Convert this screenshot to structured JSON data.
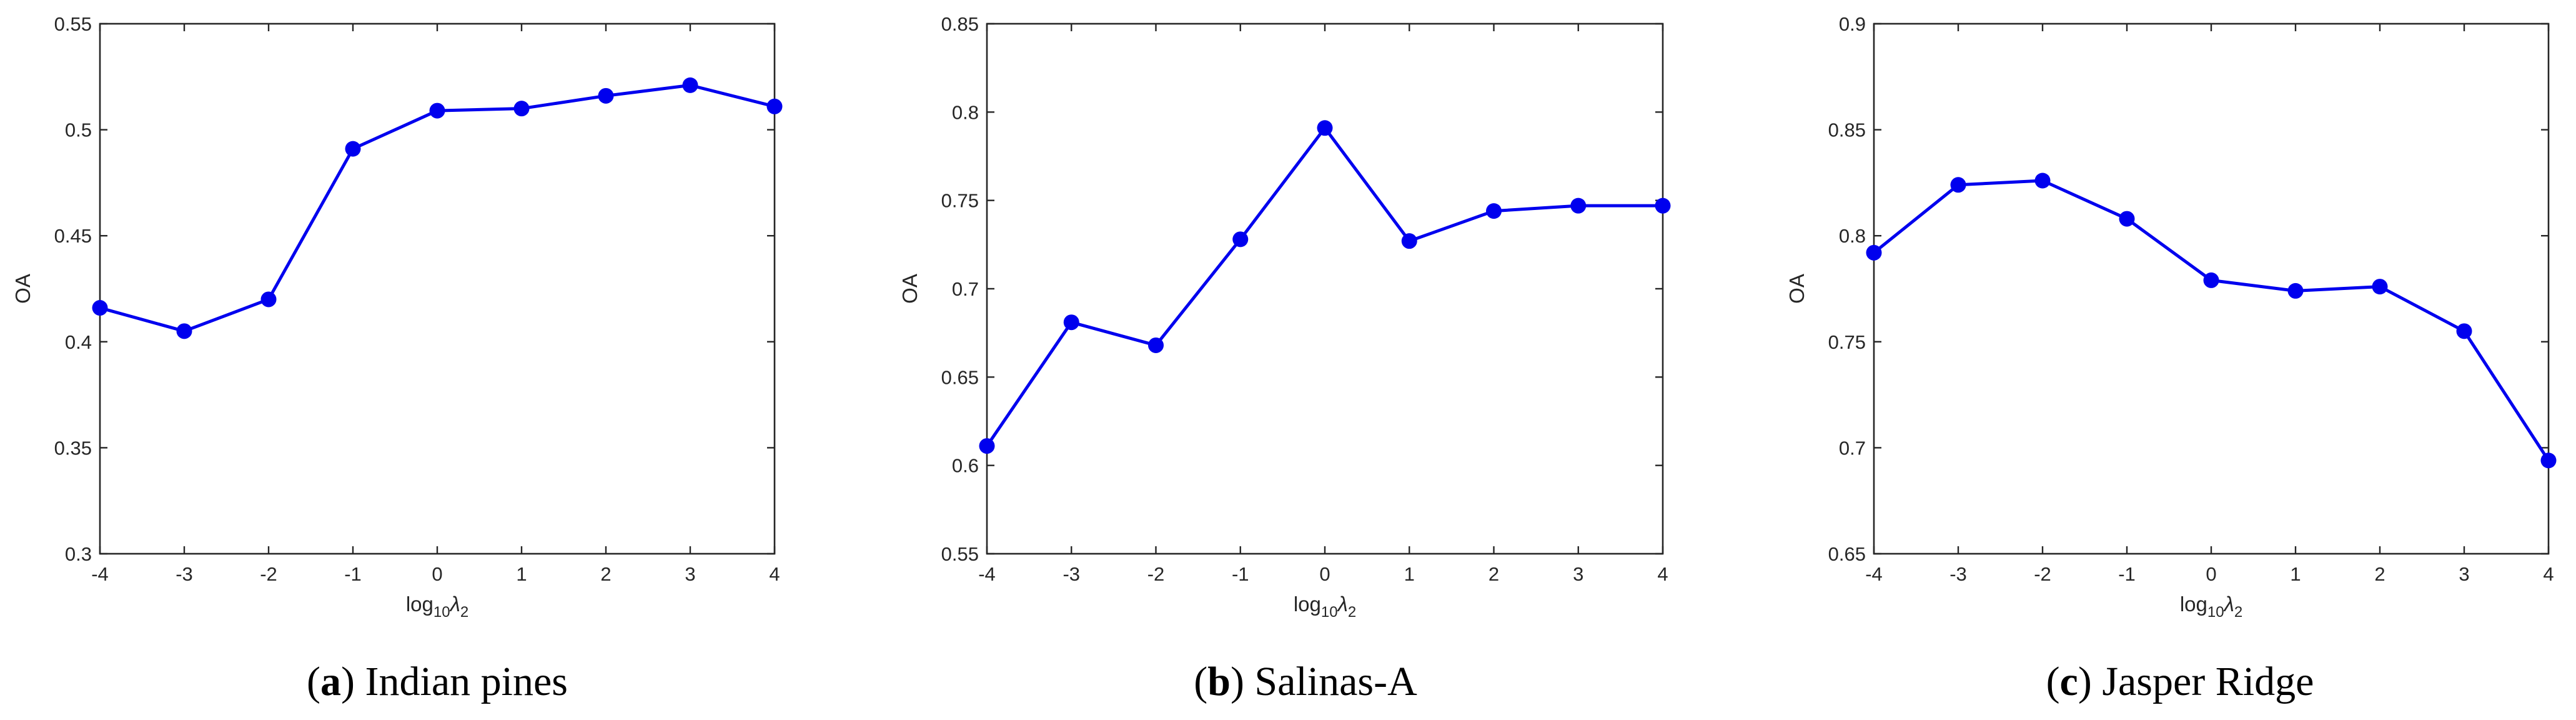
{
  "chart_data": [
    {
      "type": "line",
      "caption_letter": "a",
      "caption_text": "Indian pines",
      "xlabel_base": "log",
      "xlabel_sub": "10",
      "xlabel_symbol": "λ",
      "xlabel_symbol_sub": "2",
      "ylabel": "OA",
      "x": [
        -4,
        -3,
        -2,
        -1,
        0,
        1,
        2,
        3,
        4
      ],
      "xticks": [
        "-4",
        "-3",
        "-2",
        "-1",
        "0",
        "1",
        "2",
        "3",
        "4"
      ],
      "xlim": [
        -4,
        4
      ],
      "ylim": [
        0.3,
        0.55
      ],
      "yticks": [
        0.3,
        0.35,
        0.4,
        0.45,
        0.5,
        0.55
      ],
      "ytick_labels": [
        "0.3",
        "0.35",
        "0.4",
        "0.45",
        "0.5",
        "0.55"
      ],
      "series": [
        {
          "values": [
            0.416,
            0.405,
            0.42,
            0.491,
            0.509,
            0.51,
            0.516,
            0.521,
            0.511
          ],
          "color": "#0000ee"
        }
      ],
      "grid": false
    },
    {
      "type": "line",
      "caption_letter": "b",
      "caption_text": "Salinas-A",
      "xlabel_base": "log",
      "xlabel_sub": "10",
      "xlabel_symbol": "λ",
      "xlabel_symbol_sub": "2",
      "ylabel": "OA",
      "x": [
        -4,
        -3,
        -2,
        -1,
        0,
        1,
        2,
        3,
        4
      ],
      "xticks": [
        "-4",
        "-3",
        "-2",
        "-1",
        "0",
        "1",
        "2",
        "3",
        "4"
      ],
      "xlim": [
        -4,
        4
      ],
      "ylim": [
        0.55,
        0.85
      ],
      "yticks": [
        0.55,
        0.6,
        0.65,
        0.7,
        0.75,
        0.8,
        0.85
      ],
      "ytick_labels": [
        "0.55",
        "0.6",
        "0.65",
        "0.7",
        "0.75",
        "0.8",
        "0.85"
      ],
      "series": [
        {
          "values": [
            0.611,
            0.681,
            0.668,
            0.728,
            0.791,
            0.727,
            0.744,
            0.747,
            0.747
          ],
          "color": "#0000ee"
        }
      ],
      "grid": false
    },
    {
      "type": "line",
      "caption_letter": "c",
      "caption_text": "Jasper Ridge",
      "xlabel_base": "log",
      "xlabel_sub": "10",
      "xlabel_symbol": "λ",
      "xlabel_symbol_sub": "2",
      "ylabel": "OA",
      "x": [
        -4,
        -3,
        -2,
        -1,
        0,
        1,
        2,
        3,
        4
      ],
      "xticks": [
        "-4",
        "-3",
        "-2",
        "-1",
        "0",
        "1",
        "2",
        "3",
        "4"
      ],
      "xlim": [
        -4,
        4
      ],
      "ylim": [
        0.65,
        0.9
      ],
      "yticks": [
        0.65,
        0.7,
        0.75,
        0.8,
        0.85,
        0.9
      ],
      "ytick_labels": [
        "0.65",
        "0.7",
        "0.75",
        "0.8",
        "0.85",
        "0.9"
      ],
      "series": [
        {
          "values": [
            0.792,
            0.824,
            0.826,
            0.808,
            0.779,
            0.774,
            0.776,
            0.755,
            0.694
          ],
          "color": "#0000ee"
        }
      ],
      "grid": false
    }
  ]
}
